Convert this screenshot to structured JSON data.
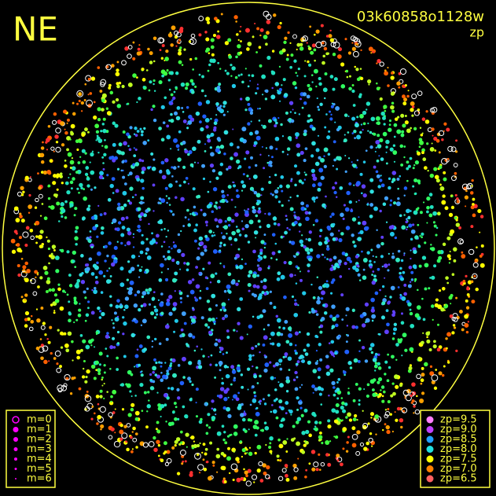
{
  "header": {
    "corner_label": "NE",
    "image_id": "03k60858o1128w",
    "mode": "zp"
  },
  "legend_m": [
    "m=0",
    "m=1",
    "m=2",
    "m=3",
    "m=4",
    "m=5",
    "m=6"
  ],
  "legend_zp": {
    "labels": [
      "zp=9.5",
      "zp=9.0",
      "zp=8.5",
      "zp=8.0",
      "zp=7.5",
      "zp=7.0",
      "zp=6.5"
    ],
    "colors": [
      "#ff80ff",
      "#c040ff",
      "#20a0ff",
      "#20e0e0",
      "#ffff00",
      "#ff8000",
      "#ff6060"
    ]
  }
}
